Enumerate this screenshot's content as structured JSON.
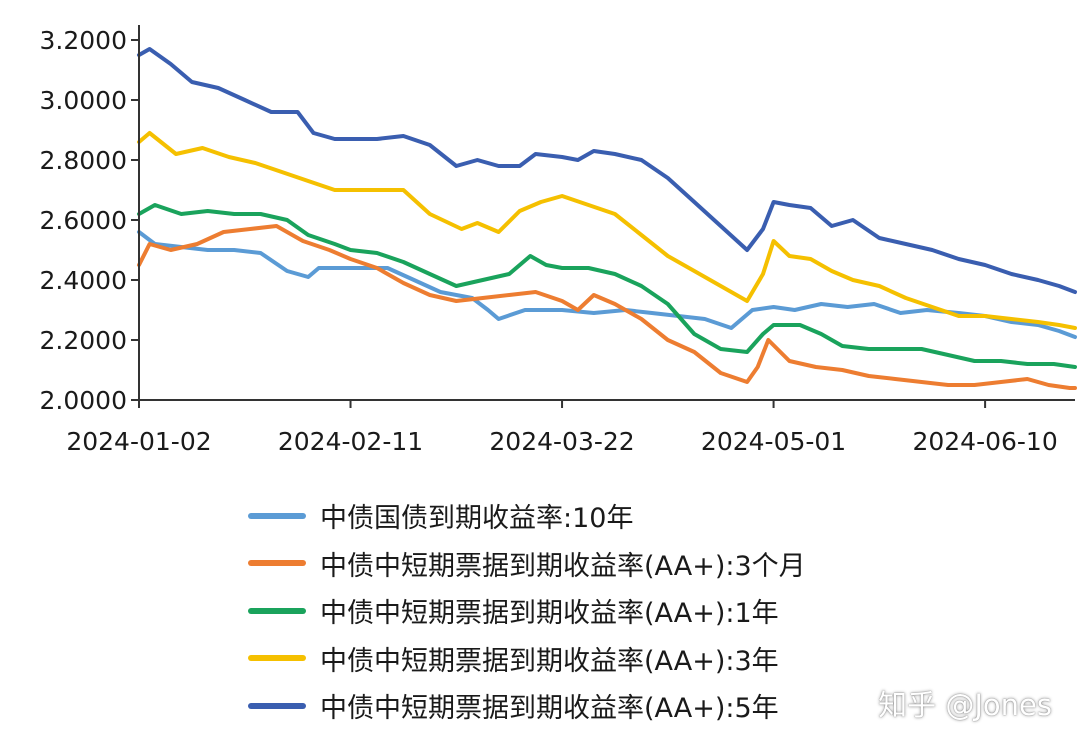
{
  "chart_data": {
    "type": "line",
    "xlabel": "",
    "ylabel": "",
    "x_ticks": [
      "2024-01-02",
      "2024-02-11",
      "2024-03-22",
      "2024-05-01",
      "2024-06-10"
    ],
    "y_ticks": [
      "2.0000",
      "2.2000",
      "2.4000",
      "2.6000",
      "2.8000",
      "3.0000",
      "3.2000"
    ],
    "xlim": [
      "2024-01-02",
      "2024-06-27"
    ],
    "ylim": [
      2.0,
      3.25
    ],
    "grid": false,
    "legend_position": "bottom",
    "series": [
      {
        "name": "中债国债到期收益率:10年",
        "color": "#5b9bd5",
        "points": [
          [
            "2024-01-02",
            2.56
          ],
          [
            "2024-01-05",
            2.52
          ],
          [
            "2024-01-10",
            2.51
          ],
          [
            "2024-01-15",
            2.5
          ],
          [
            "2024-01-20",
            2.5
          ],
          [
            "2024-01-25",
            2.49
          ],
          [
            "2024-01-30",
            2.43
          ],
          [
            "2024-02-03",
            2.41
          ],
          [
            "2024-02-05",
            2.44
          ],
          [
            "2024-02-11",
            2.44
          ],
          [
            "2024-02-18",
            2.44
          ],
          [
            "2024-02-23",
            2.4
          ],
          [
            "2024-02-28",
            2.36
          ],
          [
            "2024-03-05",
            2.34
          ],
          [
            "2024-03-08",
            2.3
          ],
          [
            "2024-03-10",
            2.27
          ],
          [
            "2024-03-15",
            2.3
          ],
          [
            "2024-03-22",
            2.3
          ],
          [
            "2024-03-28",
            2.29
          ],
          [
            "2024-04-03",
            2.3
          ],
          [
            "2024-04-08",
            2.29
          ],
          [
            "2024-04-13",
            2.28
          ],
          [
            "2024-04-18",
            2.27
          ],
          [
            "2024-04-23",
            2.24
          ],
          [
            "2024-04-27",
            2.3
          ],
          [
            "2024-05-01",
            2.31
          ],
          [
            "2024-05-05",
            2.3
          ],
          [
            "2024-05-10",
            2.32
          ],
          [
            "2024-05-15",
            2.31
          ],
          [
            "2024-05-20",
            2.32
          ],
          [
            "2024-05-25",
            2.29
          ],
          [
            "2024-05-30",
            2.3
          ],
          [
            "2024-06-05",
            2.29
          ],
          [
            "2024-06-10",
            2.28
          ],
          [
            "2024-06-15",
            2.26
          ],
          [
            "2024-06-20",
            2.25
          ],
          [
            "2024-06-24",
            2.23
          ],
          [
            "2024-06-27",
            2.21
          ]
        ]
      },
      {
        "name": "中债中短期票据到期收益率(AA+):3个月",
        "color": "#ed7d31",
        "points": [
          [
            "2024-01-02",
            2.45
          ],
          [
            "2024-01-04",
            2.52
          ],
          [
            "2024-01-08",
            2.5
          ],
          [
            "2024-01-13",
            2.52
          ],
          [
            "2024-01-18",
            2.56
          ],
          [
            "2024-01-23",
            2.57
          ],
          [
            "2024-01-28",
            2.58
          ],
          [
            "2024-02-02",
            2.53
          ],
          [
            "2024-02-07",
            2.5
          ],
          [
            "2024-02-11",
            2.47
          ],
          [
            "2024-02-16",
            2.44
          ],
          [
            "2024-02-21",
            2.39
          ],
          [
            "2024-02-26",
            2.35
          ],
          [
            "2024-03-02",
            2.33
          ],
          [
            "2024-03-07",
            2.34
          ],
          [
            "2024-03-12",
            2.35
          ],
          [
            "2024-03-17",
            2.36
          ],
          [
            "2024-03-22",
            2.33
          ],
          [
            "2024-03-25",
            2.3
          ],
          [
            "2024-03-28",
            2.35
          ],
          [
            "2024-04-01",
            2.32
          ],
          [
            "2024-04-06",
            2.27
          ],
          [
            "2024-04-11",
            2.2
          ],
          [
            "2024-04-16",
            2.16
          ],
          [
            "2024-04-21",
            2.09
          ],
          [
            "2024-04-26",
            2.06
          ],
          [
            "2024-04-28",
            2.11
          ],
          [
            "2024-04-30",
            2.2
          ],
          [
            "2024-05-04",
            2.13
          ],
          [
            "2024-05-09",
            2.11
          ],
          [
            "2024-05-14",
            2.1
          ],
          [
            "2024-05-19",
            2.08
          ],
          [
            "2024-05-24",
            2.07
          ],
          [
            "2024-05-29",
            2.06
          ],
          [
            "2024-06-03",
            2.05
          ],
          [
            "2024-06-08",
            2.05
          ],
          [
            "2024-06-13",
            2.06
          ],
          [
            "2024-06-18",
            2.07
          ],
          [
            "2024-06-22",
            2.05
          ],
          [
            "2024-06-26",
            2.04
          ],
          [
            "2024-06-27",
            2.04
          ]
        ]
      },
      {
        "name": "中债中短期票据到期收益率(AA+):1年",
        "color": "#1aa35c",
        "points": [
          [
            "2024-01-02",
            2.62
          ],
          [
            "2024-01-05",
            2.65
          ],
          [
            "2024-01-10",
            2.62
          ],
          [
            "2024-01-15",
            2.63
          ],
          [
            "2024-01-20",
            2.62
          ],
          [
            "2024-01-25",
            2.62
          ],
          [
            "2024-01-30",
            2.6
          ],
          [
            "2024-02-03",
            2.55
          ],
          [
            "2024-02-08",
            2.52
          ],
          [
            "2024-02-11",
            2.5
          ],
          [
            "2024-02-16",
            2.49
          ],
          [
            "2024-02-21",
            2.46
          ],
          [
            "2024-02-26",
            2.42
          ],
          [
            "2024-03-02",
            2.38
          ],
          [
            "2024-03-07",
            2.4
          ],
          [
            "2024-03-12",
            2.42
          ],
          [
            "2024-03-16",
            2.48
          ],
          [
            "2024-03-19",
            2.45
          ],
          [
            "2024-03-22",
            2.44
          ],
          [
            "2024-03-27",
            2.44
          ],
          [
            "2024-04-01",
            2.42
          ],
          [
            "2024-04-06",
            2.38
          ],
          [
            "2024-04-11",
            2.32
          ],
          [
            "2024-04-16",
            2.22
          ],
          [
            "2024-04-21",
            2.17
          ],
          [
            "2024-04-26",
            2.16
          ],
          [
            "2024-04-29",
            2.22
          ],
          [
            "2024-05-01",
            2.25
          ],
          [
            "2024-05-06",
            2.25
          ],
          [
            "2024-05-10",
            2.22
          ],
          [
            "2024-05-14",
            2.18
          ],
          [
            "2024-05-19",
            2.17
          ],
          [
            "2024-05-24",
            2.17
          ],
          [
            "2024-05-29",
            2.17
          ],
          [
            "2024-06-03",
            2.15
          ],
          [
            "2024-06-08",
            2.13
          ],
          [
            "2024-06-13",
            2.13
          ],
          [
            "2024-06-18",
            2.12
          ],
          [
            "2024-06-23",
            2.12
          ],
          [
            "2024-06-27",
            2.11
          ]
        ]
      },
      {
        "name": "中债中短期票据到期收益率(AA+):3年",
        "color": "#f5c000",
        "points": [
          [
            "2024-01-02",
            2.86
          ],
          [
            "2024-01-04",
            2.89
          ],
          [
            "2024-01-09",
            2.82
          ],
          [
            "2024-01-14",
            2.84
          ],
          [
            "2024-01-19",
            2.81
          ],
          [
            "2024-01-24",
            2.79
          ],
          [
            "2024-01-29",
            2.76
          ],
          [
            "2024-02-03",
            2.73
          ],
          [
            "2024-02-08",
            2.7
          ],
          [
            "2024-02-11",
            2.7
          ],
          [
            "2024-02-16",
            2.7
          ],
          [
            "2024-02-21",
            2.7
          ],
          [
            "2024-02-26",
            2.62
          ],
          [
            "2024-03-03",
            2.57
          ],
          [
            "2024-03-06",
            2.59
          ],
          [
            "2024-03-10",
            2.56
          ],
          [
            "2024-03-14",
            2.63
          ],
          [
            "2024-03-18",
            2.66
          ],
          [
            "2024-03-22",
            2.68
          ],
          [
            "2024-03-27",
            2.65
          ],
          [
            "2024-04-01",
            2.62
          ],
          [
            "2024-04-06",
            2.55
          ],
          [
            "2024-04-11",
            2.48
          ],
          [
            "2024-04-16",
            2.43
          ],
          [
            "2024-04-21",
            2.38
          ],
          [
            "2024-04-26",
            2.33
          ],
          [
            "2024-04-29",
            2.42
          ],
          [
            "2024-05-01",
            2.53
          ],
          [
            "2024-05-04",
            2.48
          ],
          [
            "2024-05-08",
            2.47
          ],
          [
            "2024-05-12",
            2.43
          ],
          [
            "2024-05-16",
            2.4
          ],
          [
            "2024-05-21",
            2.38
          ],
          [
            "2024-05-26",
            2.34
          ],
          [
            "2024-05-31",
            2.31
          ],
          [
            "2024-06-05",
            2.28
          ],
          [
            "2024-06-10",
            2.28
          ],
          [
            "2024-06-15",
            2.27
          ],
          [
            "2024-06-20",
            2.26
          ],
          [
            "2024-06-24",
            2.25
          ],
          [
            "2024-06-27",
            2.24
          ]
        ]
      },
      {
        "name": "中债中短期票据到期收益率(AA+):5年",
        "color": "#3a5eb0",
        "points": [
          [
            "2024-01-02",
            3.15
          ],
          [
            "2024-01-04",
            3.17
          ],
          [
            "2024-01-08",
            3.12
          ],
          [
            "2024-01-12",
            3.06
          ],
          [
            "2024-01-17",
            3.04
          ],
          [
            "2024-01-22",
            3.0
          ],
          [
            "2024-01-27",
            2.96
          ],
          [
            "2024-02-01",
            2.96
          ],
          [
            "2024-02-04",
            2.89
          ],
          [
            "2024-02-08",
            2.87
          ],
          [
            "2024-02-11",
            2.87
          ],
          [
            "2024-02-16",
            2.87
          ],
          [
            "2024-02-21",
            2.88
          ],
          [
            "2024-02-26",
            2.85
          ],
          [
            "2024-03-02",
            2.78
          ],
          [
            "2024-03-06",
            2.8
          ],
          [
            "2024-03-10",
            2.78
          ],
          [
            "2024-03-14",
            2.78
          ],
          [
            "2024-03-17",
            2.82
          ],
          [
            "2024-03-22",
            2.81
          ],
          [
            "2024-03-25",
            2.8
          ],
          [
            "2024-03-28",
            2.83
          ],
          [
            "2024-04-01",
            2.82
          ],
          [
            "2024-04-06",
            2.8
          ],
          [
            "2024-04-11",
            2.74
          ],
          [
            "2024-04-16",
            2.66
          ],
          [
            "2024-04-21",
            2.58
          ],
          [
            "2024-04-26",
            2.5
          ],
          [
            "2024-04-29",
            2.57
          ],
          [
            "2024-05-01",
            2.66
          ],
          [
            "2024-05-04",
            2.65
          ],
          [
            "2024-05-08",
            2.64
          ],
          [
            "2024-05-12",
            2.58
          ],
          [
            "2024-05-16",
            2.6
          ],
          [
            "2024-05-21",
            2.54
          ],
          [
            "2024-05-26",
            2.52
          ],
          [
            "2024-05-31",
            2.5
          ],
          [
            "2024-06-05",
            2.47
          ],
          [
            "2024-06-10",
            2.45
          ],
          [
            "2024-06-15",
            2.42
          ],
          [
            "2024-06-20",
            2.4
          ],
          [
            "2024-06-24",
            2.38
          ],
          [
            "2024-06-27",
            2.36
          ]
        ]
      }
    ]
  },
  "watermark": "知乎 @Jones"
}
